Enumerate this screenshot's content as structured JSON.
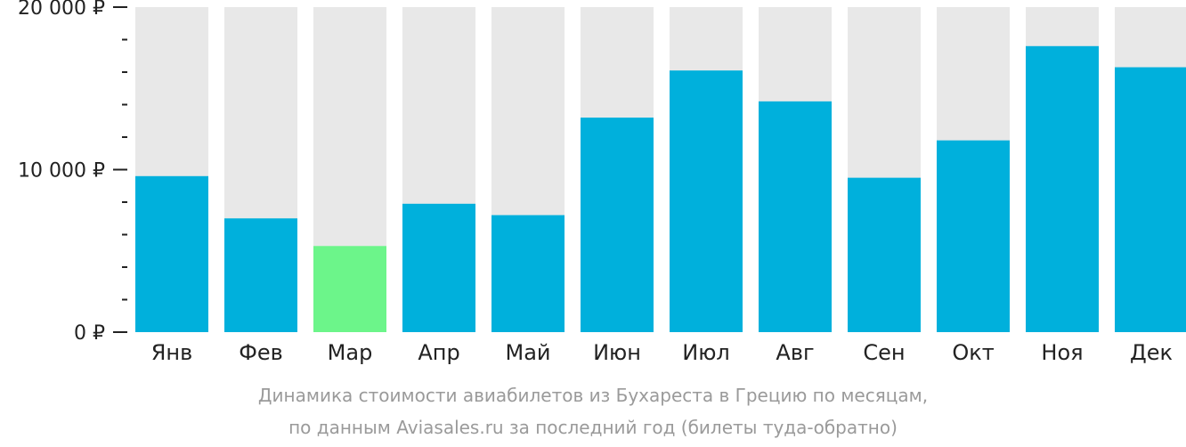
{
  "chart_data": {
    "type": "bar",
    "categories": [
      "Янв",
      "Фев",
      "Мар",
      "Апр",
      "Май",
      "Июн",
      "Июл",
      "Авг",
      "Сен",
      "Окт",
      "Ноя",
      "Дек"
    ],
    "values": [
      9600,
      7000,
      5300,
      7900,
      7200,
      13200,
      16100,
      14200,
      9500,
      11800,
      17600,
      16300
    ],
    "ylim": [
      0,
      20000
    ],
    "yticks": [
      0,
      10000,
      20000
    ],
    "ytick_labels": [
      "0 ₽",
      "10 000 ₽",
      "20 000 ₽"
    ],
    "minor_ticks_per_major": 5,
    "highlight_index": 2,
    "colors": {
      "bar": "#00b0dc",
      "highlight": "#6cf58a",
      "background_bar": "#e8e8e8"
    }
  },
  "caption": {
    "line1": "Динамика стоимости авиабилетов из Бухареста в Грецию по месяцам,",
    "line2": "по данным Aviasales.ru за последний год (билеты туда-обратно)"
  }
}
